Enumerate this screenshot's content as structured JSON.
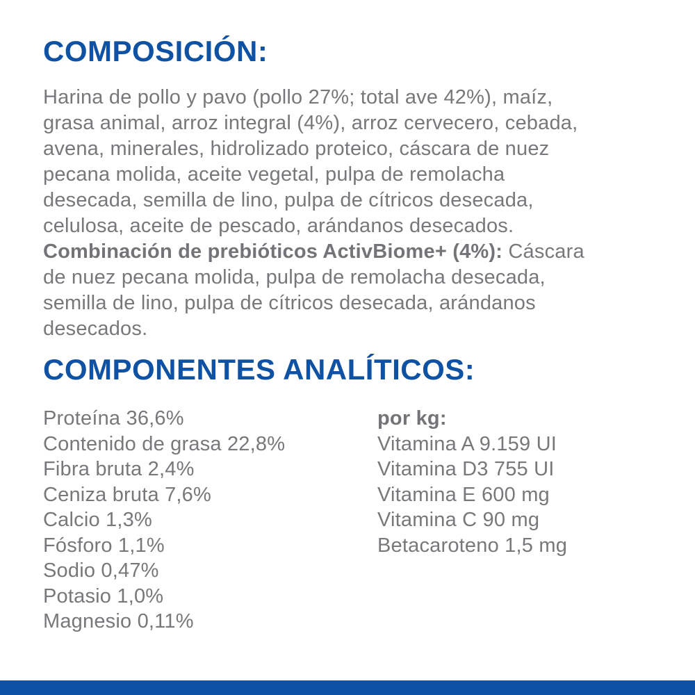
{
  "colors": {
    "heading_blue": "#0f52a4",
    "body_gray": "#77787b",
    "footer_blue": "#0d51a6",
    "background": "#ffffff"
  },
  "composition": {
    "heading": "COMPOSICIÓN:",
    "ingredients_text": "Harina de pollo y pavo (pollo 27%; total ave 42%), maíz,\ngrasa animal, arroz integral (4%), arroz cervecero, cebada,\navena, minerales, hidrolizado proteico, cáscara de nuez\npecana molida, aceite vegetal, pulpa de remolacha\ndesecada, semilla de lino, pulpa de cítricos desecada,\ncelulosa, aceite de pescado, arándanos desecados.\n",
    "prebiotics_label": "Combinación de prebióticos ActivBiome+ (4%):",
    "prebiotics_text": " Cáscara\nde nuez pecana molida, pulpa de remolacha desecada,\nsemilla de lino, pulpa de cítricos desecada, arándanos\ndesecados."
  },
  "analytical": {
    "heading": "COMPONENTES ANALÍTICOS:",
    "left_column": [
      "Proteína 36,6%",
      "Contenido de grasa 22,8%",
      "Fibra bruta 2,4%",
      "Ceniza bruta 7,6%",
      "Calcio 1,3%",
      "Fósforo 1,1%",
      "Sodio 0,47%",
      "Potasio 1,0%",
      "Magnesio 0,11%"
    ],
    "right_column": {
      "header": "por kg:",
      "items": [
        "Vitamina A 9.159 UI",
        "Vitamina D3 755 UI",
        "Vitamina E 600 mg",
        "Vitamina C 90 mg",
        "Betacaroteno 1,5 mg"
      ]
    }
  }
}
